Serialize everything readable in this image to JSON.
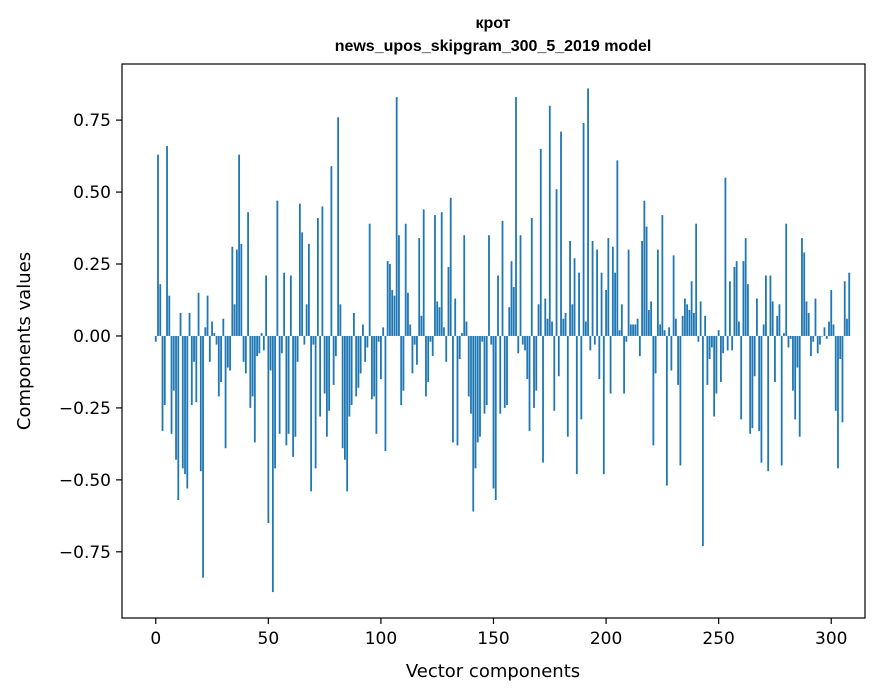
{
  "chart_data": {
    "type": "bar",
    "title": "крот",
    "subtitle": "news_upos_skipgram_300_5_2019 model",
    "xlabel": "Vector components",
    "ylabel": "Components values",
    "xlim": [
      -15,
      315
    ],
    "ylim": [
      -0.98,
      0.945
    ],
    "xticks": [
      0,
      50,
      100,
      150,
      200,
      250,
      300
    ],
    "yticks": [
      -0.75,
      -0.5,
      -0.25,
      0.0,
      0.25,
      0.5,
      0.75
    ],
    "ytick_labels": [
      "−0.75",
      "−0.50",
      "−0.25",
      "0.00",
      "0.25",
      "0.50",
      "0.75"
    ],
    "bar_color": "#1f77b4",
    "grid": false,
    "values": [
      -0.02,
      0.63,
      0.18,
      -0.33,
      -0.24,
      0.66,
      0.14,
      -0.34,
      -0.19,
      -0.43,
      -0.57,
      0.08,
      -0.46,
      -0.48,
      -0.53,
      0.08,
      -0.24,
      -0.09,
      -0.23,
      0.15,
      -0.47,
      -0.84,
      0.03,
      0.14,
      -0.09,
      0.05,
      0.01,
      -0.03,
      -0.21,
      -0.16,
      0.06,
      -0.39,
      -0.11,
      -0.12,
      0.31,
      0.11,
      0.3,
      0.63,
      0.32,
      -0.09,
      -0.13,
      0.43,
      -0.25,
      -0.21,
      -0.37,
      -0.07,
      -0.06,
      0.01,
      -0.05,
      0.21,
      -0.65,
      -0.12,
      -0.89,
      -0.46,
      0.47,
      -0.34,
      -0.06,
      0.22,
      -0.38,
      -0.34,
      0.21,
      -0.42,
      -0.35,
      -0.09,
      0.46,
      0.36,
      -0.03,
      0.11,
      0.32,
      -0.54,
      -0.03,
      -0.46,
      0.41,
      -0.28,
      0.45,
      -0.2,
      -0.35,
      -0.26,
      0.59,
      -0.17,
      -0.07,
      0.76,
      0.11,
      -0.39,
      -0.43,
      -0.54,
      -0.28,
      -0.24,
      0.08,
      -0.21,
      -0.18,
      -0.13,
      0.04,
      -0.09,
      -0.04,
      0.39,
      -0.22,
      -0.21,
      -0.34,
      -0.02,
      -0.15,
      0.03,
      -0.4,
      0.26,
      0.25,
      0.16,
      0.14,
      0.83,
      0.35,
      -0.24,
      -0.19,
      0.39,
      0.15,
      0.04,
      -0.13,
      -0.03,
      -0.1,
      0.34,
      0.07,
      0.44,
      -0.21,
      -0.16,
      -0.02,
      -0.07,
      0.42,
      0.12,
      0.1,
      0.43,
      0.03,
      -0.09,
      0.24,
      0.48,
      -0.37,
      0.13,
      -0.38,
      -0.08,
      0.01,
      0.35,
      0.05,
      -0.21,
      -0.27,
      -0.61,
      -0.46,
      -0.37,
      -0.35,
      -0.02,
      -0.27,
      -0.24,
      0.35,
      -0.03,
      -0.53,
      -0.57,
      0.21,
      -0.27,
      0.4,
      -0.25,
      -0.24,
      0.1,
      0.26,
      0.17,
      0.83,
      -0.06,
      0.35,
      -0.03,
      -0.05,
      -0.15,
      -0.33,
      0.41,
      -0.25,
      -0.19,
      0.11,
      0.65,
      -0.44,
      0.13,
      0.06,
      0.8,
      0.05,
      -0.26,
      0.51,
      -0.14,
      0.71,
      0.06,
      0.08,
      -0.35,
      0.33,
      0.11,
      0.27,
      -0.48,
      0.22,
      -0.29,
      0.74,
      0.05,
      0.86,
      -0.05,
      0.33,
      -0.03,
      0.3,
      -0.15,
      0.22,
      -0.48,
      0.16,
      0.34,
      -0.2,
      0.31,
      0.22,
      0.61,
      0.02,
      0.11,
      -0.2,
      -0.02,
      0.3,
      0.04,
      0.04,
      0.04,
      0.06,
      -0.07,
      0.33,
      0.47,
      0.38,
      0.09,
      0.12,
      -0.38,
      -0.13,
      0.3,
      0.04,
      0.42,
      0.02,
      -0.52,
      0.03,
      -0.12,
      0.28,
      0.06,
      -0.17,
      -0.45,
      0.07,
      0.13,
      0.11,
      0.09,
      0.19,
      0.08,
      0.39,
      -0.02,
      0.12,
      -0.73,
      0.07,
      -0.17,
      -0.08,
      -0.04,
      -0.28,
      -0.2,
      0.02,
      -0.16,
      -0.06,
      0.55,
      -0.05,
      0.19,
      -0.05,
      0.24,
      0.26,
      0.05,
      -0.29,
      0.26,
      0.34,
      0.18,
      -0.34,
      -0.32,
      -0.14,
      0.13,
      -0.33,
      -0.44,
      0.04,
      0.21,
      -0.47,
      0.21,
      0.12,
      -0.16,
      0.07,
      0.11,
      -0.45,
      0.01,
      0.39,
      -0.04,
      -0.01,
      -0.19,
      -0.29,
      -0.11,
      -0.35,
      0.34,
      0.29,
      0.12,
      0.08,
      -0.07,
      -0.02,
      0.13,
      -0.06,
      -0.03,
      0.0,
      0.03,
      -0.01,
      0.05,
      0.16,
      0.04,
      -0.26,
      -0.46,
      -0.08,
      -0.3,
      0.19,
      0.06,
      0.22
    ]
  }
}
